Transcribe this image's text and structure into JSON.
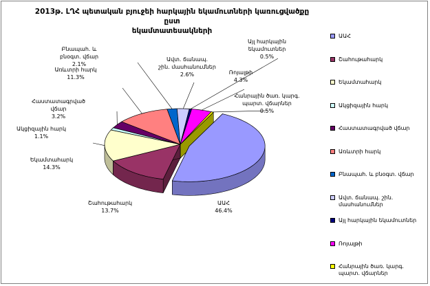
{
  "chart_data": {
    "type": "pie",
    "title": "2013թ. ԼՂՀ պետական բյուջեի հարկային եկամուտների կառուցվածքը ըստ\nեկամտատեսակների",
    "slices": [
      {
        "label": "ԱԱՀ",
        "value": 46.4,
        "display": "46.4%",
        "color": "#9999FF"
      },
      {
        "label": "Շահութահարկ",
        "value": 13.7,
        "display": "13.7%",
        "color": "#993366"
      },
      {
        "label": "Եկամտահարկ",
        "value": 14.3,
        "display": "14.3%",
        "color": "#FFFFCC"
      },
      {
        "label": "Ակցիզային հարկ",
        "value": 1.1,
        "display": "1.1%",
        "color": "#CCFFFF"
      },
      {
        "label": "Հաստատագրված վճար",
        "value": 3.2,
        "display": "3.2%",
        "color": "#660066"
      },
      {
        "label": "Առևտրի հարկ",
        "value": 11.3,
        "display": "11.3%",
        "color": "#FF8080"
      },
      {
        "label": "Բնապահ. և բնօգտ. վճար",
        "value": 2.1,
        "display": "2.1%",
        "color": "#0066CC"
      },
      {
        "label": "Ավտ. ճանապ. շին. մասհանումներ",
        "value": 2.6,
        "display": "2.6%",
        "color": "#CCCCFF"
      },
      {
        "label": "Այլ հարկային եկամուտներ",
        "value": 0.5,
        "display": "0.5%",
        "color": "#000080"
      },
      {
        "label": "Ռոյալթի",
        "value": 4.3,
        "display": "4.3%",
        "color": "#FF00FF"
      },
      {
        "label": "Հանրային ծառ. կարգ. պարտ. վճարներ",
        "value": 0.5,
        "display": "0.5%",
        "color": "#FFFF00"
      }
    ],
    "legend_position": "right"
  }
}
